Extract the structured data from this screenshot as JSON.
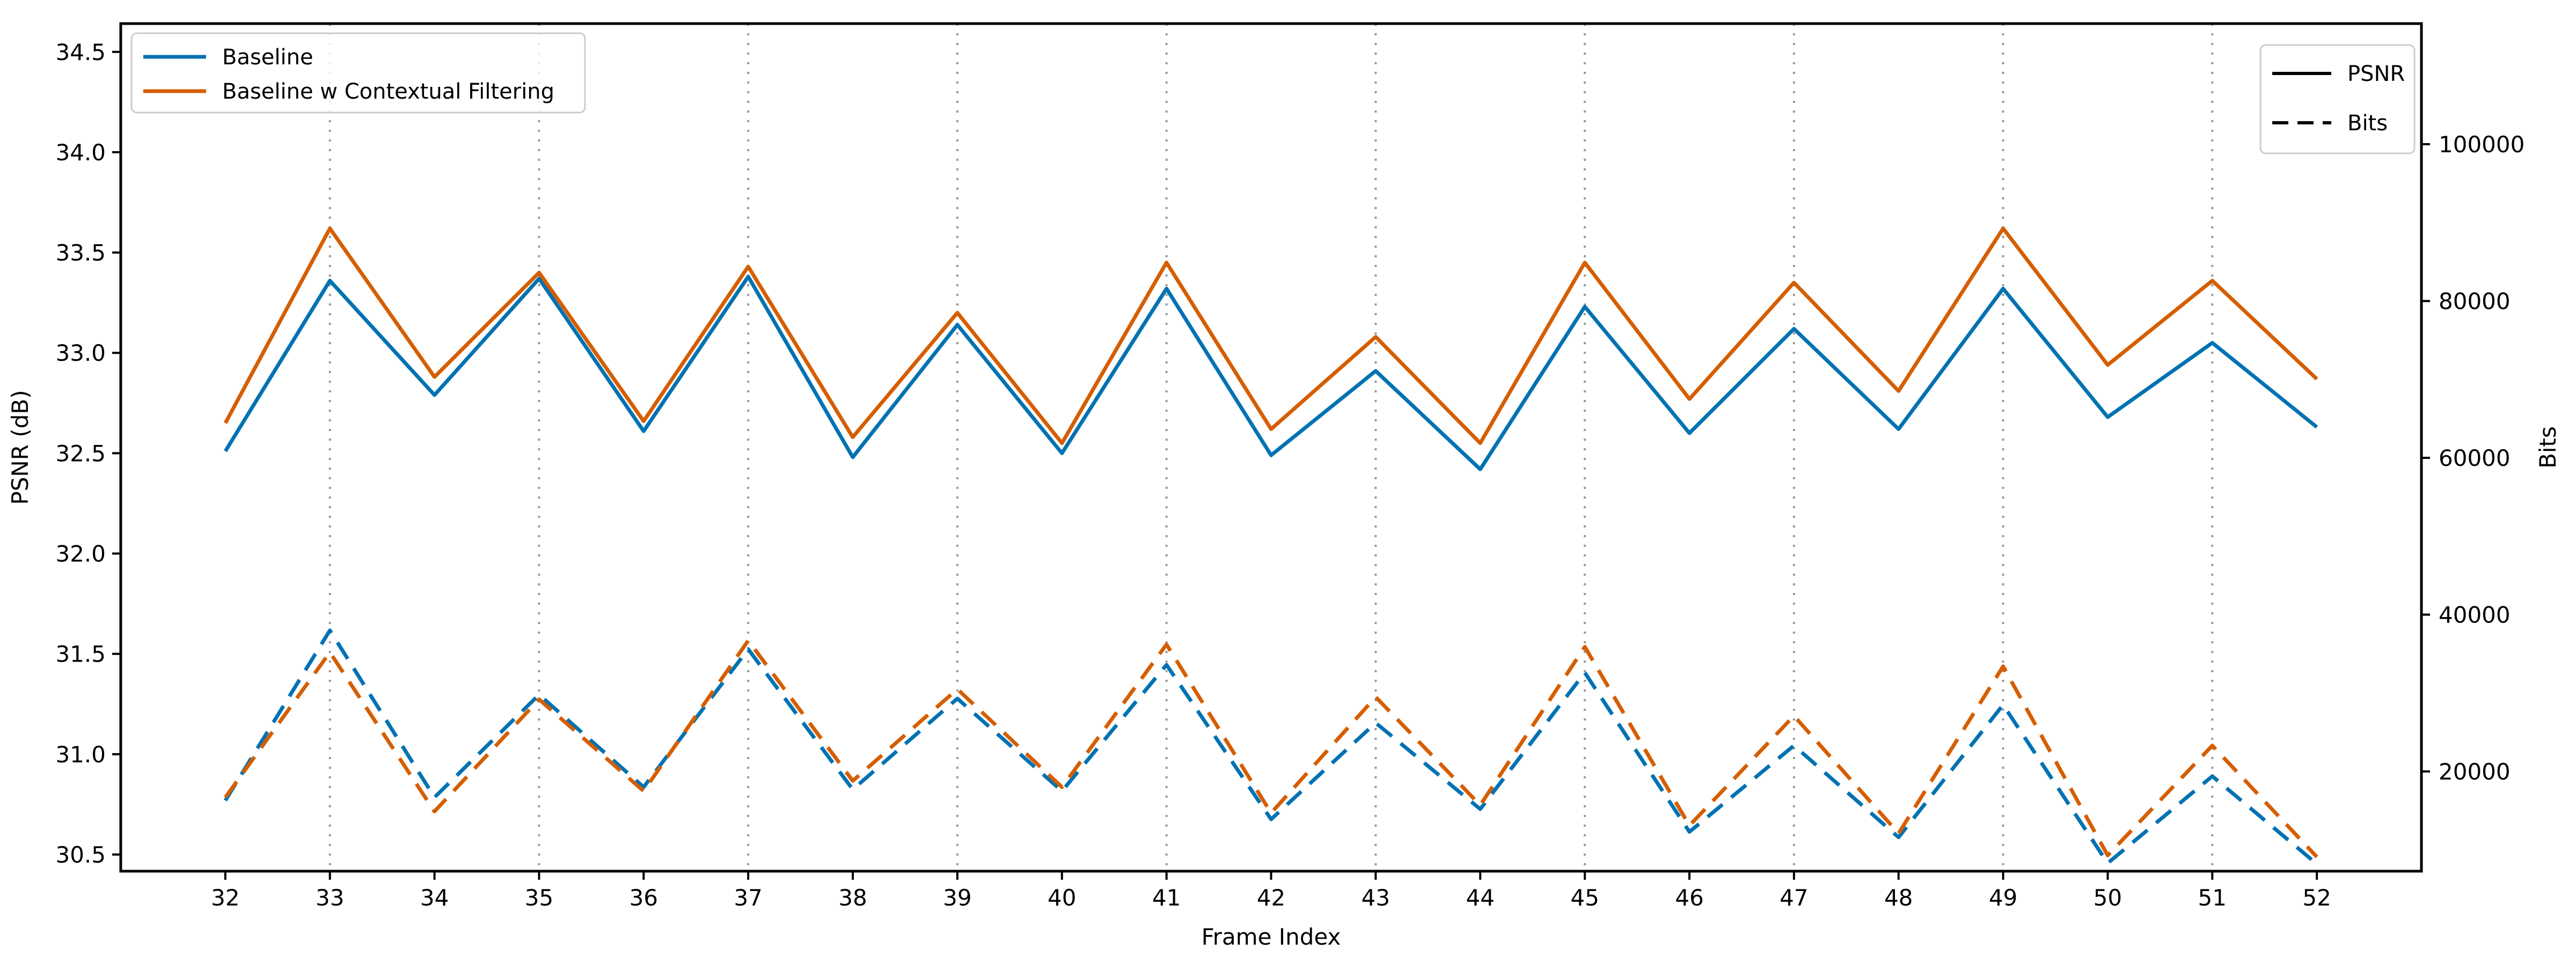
{
  "chart_data": {
    "type": "line",
    "title": "",
    "xlabel": "Frame Index",
    "ylabel_left": "PSNR (dB)",
    "ylabel_right": "Bits",
    "x": [
      32,
      33,
      34,
      35,
      36,
      37,
      38,
      39,
      40,
      41,
      42,
      43,
      44,
      45,
      46,
      47,
      48,
      49,
      50,
      51,
      52
    ],
    "xtick_labels": [
      "32",
      "33",
      "34",
      "35",
      "36",
      "37",
      "38",
      "39",
      "40",
      "41",
      "42",
      "43",
      "44",
      "45",
      "46",
      "47",
      "48",
      "49",
      "50",
      "51",
      "52"
    ],
    "xlim": [
      31,
      53
    ],
    "ylim_left": [
      30.417,
      34.641
    ],
    "ylim_right": [
      7282,
      115385
    ],
    "yticks_left": [
      30.5,
      31.0,
      31.5,
      32.0,
      32.5,
      33.0,
      33.5,
      34.0,
      34.5
    ],
    "ytick_left_labels": [
      "30.5",
      "31.0",
      "31.5",
      "32.0",
      "32.5",
      "33.0",
      "33.5",
      "34.0",
      "34.5"
    ],
    "yticks_right": [
      20000,
      40000,
      60000,
      80000,
      100000
    ],
    "ytick_right_labels": [
      "20000",
      "40000",
      "60000",
      "80000",
      "100000"
    ],
    "grid_x": [
      33,
      35,
      37,
      39,
      41,
      43,
      45,
      47,
      49,
      51
    ],
    "grid_on": true,
    "grid_color": "#999999",
    "legend_left_position": "upper left",
    "legend_right_position": "upper right",
    "colors": {
      "baseline": "#0072B2",
      "contextual": "#D55E00",
      "axis": "#000000"
    },
    "series": [
      {
        "name": "Baseline",
        "metric": "PSNR",
        "axis": "left",
        "style": "solid",
        "color": "#0072B2",
        "values": [
          32.51,
          33.36,
          32.79,
          33.37,
          32.61,
          33.38,
          32.48,
          33.14,
          32.5,
          33.32,
          32.49,
          32.91,
          32.42,
          33.23,
          32.6,
          33.12,
          32.62,
          33.32,
          32.68,
          33.05,
          32.63
        ]
      },
      {
        "name": "Baseline w Contextual Filtering",
        "metric": "PSNR",
        "axis": "left",
        "style": "solid",
        "color": "#D55E00",
        "values": [
          32.65,
          33.62,
          32.88,
          33.4,
          32.66,
          33.43,
          32.58,
          33.2,
          32.55,
          33.45,
          32.62,
          33.08,
          32.55,
          33.45,
          32.77,
          33.35,
          32.81,
          33.62,
          32.94,
          33.36,
          32.87
        ]
      },
      {
        "name": "Baseline",
        "metric": "Bits",
        "axis": "right",
        "style": "dashed",
        "color": "#0072B2",
        "values": [
          16300,
          38000,
          16700,
          29800,
          18000,
          35600,
          17700,
          29300,
          17500,
          33600,
          13900,
          26200,
          15200,
          32600,
          12300,
          23300,
          11600,
          28500,
          8300,
          19400,
          8200
        ]
      },
      {
        "name": "Baseline w Contextual Filtering",
        "metric": "Bits",
        "axis": "right",
        "style": "dashed",
        "color": "#D55E00",
        "values": [
          16700,
          35200,
          14900,
          29200,
          17500,
          36700,
          18800,
          30500,
          18000,
          36200,
          14700,
          29500,
          15700,
          35900,
          13100,
          27100,
          12100,
          33400,
          9300,
          23300,
          9100
        ]
      }
    ],
    "legend_left": {
      "items": [
        {
          "label": "Baseline",
          "color": "#0072B2"
        },
        {
          "label": "Baseline w Contextual Filtering",
          "color": "#D55E00"
        }
      ]
    },
    "legend_right": {
      "items": [
        {
          "label": "PSNR",
          "style": "solid"
        },
        {
          "label": "Bits",
          "style": "dashed"
        }
      ]
    }
  }
}
